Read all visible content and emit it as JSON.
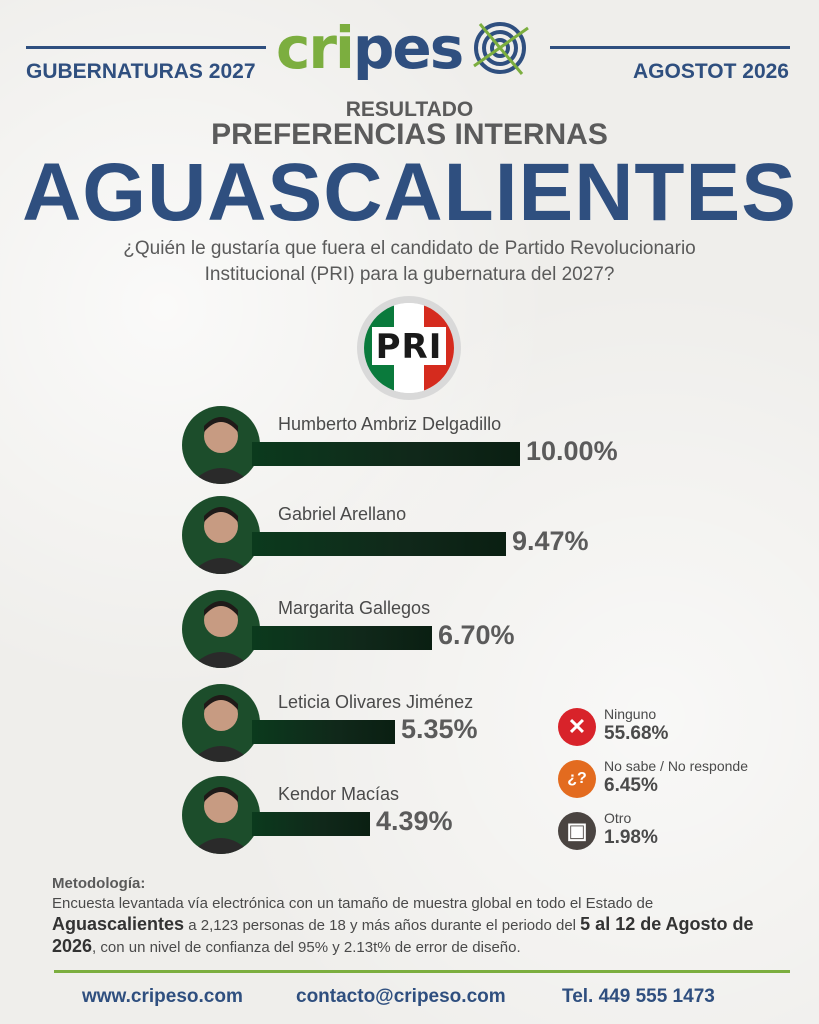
{
  "header": {
    "left_title": "GUBERNATURAS 2027",
    "right_title": "AGOSTOT 2026",
    "logo_green": "cr",
    "logo_blue": "ipes",
    "logo_green_dot": "i"
  },
  "titles": {
    "resultado": "RESULTADO",
    "preferencias": "PREFERENCIAS INTERNAS",
    "state": "AGUASCALIENTES",
    "question_line1": "¿Quién le gustaría que fuera el candidato de Partido Revolucionario",
    "question_line2": "Institucional (PRI) para la gubernatura del 2027?"
  },
  "party_logo_text": "PRI",
  "chart_data": {
    "type": "bar",
    "orientation": "horizontal",
    "categories": [
      "Humberto Ambriz Delgadillo",
      "Gabriel Arellano",
      "Margarita Gallegos",
      "Leticia Olivares Jiménez",
      "Kendor Macías"
    ],
    "values": [
      10.0,
      9.47,
      6.7,
      5.35,
      4.39
    ],
    "labels": [
      "10.00%",
      "9.47%",
      "6.70%",
      "5.35%",
      "4.39%"
    ],
    "unit": "%",
    "bar_color": "#0b3a1d",
    "others": [
      {
        "label": "Ninguno",
        "value": 55.68,
        "text": "55.68%",
        "icon": "x-icon",
        "color": "#d8232a"
      },
      {
        "label": "No sabe / No responde",
        "value": 6.45,
        "text": "6.45%",
        "icon": "question-icon",
        "color": "#e36b1f"
      },
      {
        "label": "Otro",
        "value": 1.98,
        "text": "1.98%",
        "icon": "ballot-icon",
        "color": "#4a4441"
      }
    ]
  },
  "methodology": {
    "title": "Metodología:",
    "p1": "Encuesta levantada vía electrónica con un tamaño de muestra global en todo el Estado de",
    "state_bold": "Aguascalientes",
    "p2": " a 2,123 personas de 18 y más años durante el periodo del ",
    "period_bold": "5 al 12 de Agosto de 2026",
    "p3": ", con un nivel de confianza del 95% y 2.13t% de error de diseño."
  },
  "footer": {
    "web": "www.cripeso.com",
    "email": "contacto@cripeso.com",
    "phone": "Tel. 449 555 1473"
  },
  "colors": {
    "navy": "#2f4f7f",
    "green": "#7cae3f",
    "dark_green": "#1c4d2b"
  }
}
